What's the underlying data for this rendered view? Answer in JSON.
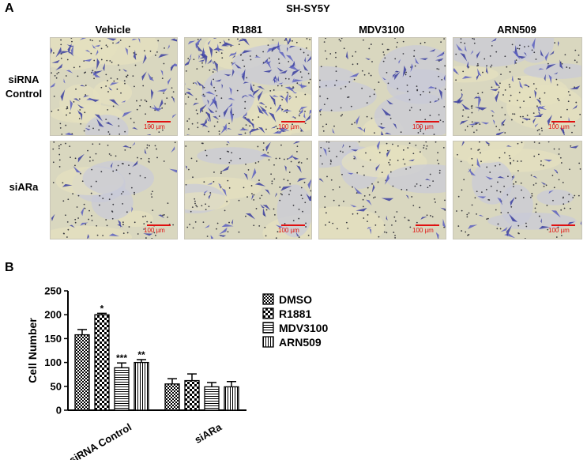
{
  "panel_a": {
    "letter": "A",
    "title": "SH-SY5Y",
    "columns": [
      "Vehicle",
      "R1881",
      "MDV3100",
      "ARN509"
    ],
    "rows": [
      {
        "label_line1": "siRNA",
        "label_line2": "Control"
      },
      {
        "label_line1": "siARa",
        "label_line2": ""
      }
    ],
    "scale_label": "100 µm"
  },
  "panel_b": {
    "letter": "B"
  },
  "chart_data": {
    "type": "bar",
    "categories": [
      "siRNA Control",
      "siARa"
    ],
    "series": [
      {
        "name": "DMSO",
        "pattern": "checker-fine",
        "values": [
          158,
          55
        ],
        "errors": [
          11,
          11
        ],
        "annotations": [
          "",
          ""
        ]
      },
      {
        "name": "R1881",
        "pattern": "checker-coarse",
        "values": [
          200,
          62
        ],
        "errors": [
          3,
          14
        ],
        "annotations": [
          "*",
          ""
        ]
      },
      {
        "name": "MDV3100",
        "pattern": "horizontal",
        "values": [
          89,
          49
        ],
        "errors": [
          10,
          9
        ],
        "annotations": [
          "***",
          ""
        ]
      },
      {
        "name": "ARN509",
        "pattern": "vertical",
        "values": [
          100,
          49
        ],
        "errors": [
          6,
          11
        ],
        "annotations": [
          "**",
          ""
        ]
      }
    ],
    "ylabel": "Cell Number",
    "xlabel": "",
    "ylim": [
      0,
      250
    ],
    "yticks": [
      "0",
      "50",
      "100",
      "150",
      "200",
      "250"
    ],
    "legend_position": "right",
    "grid": false
  }
}
